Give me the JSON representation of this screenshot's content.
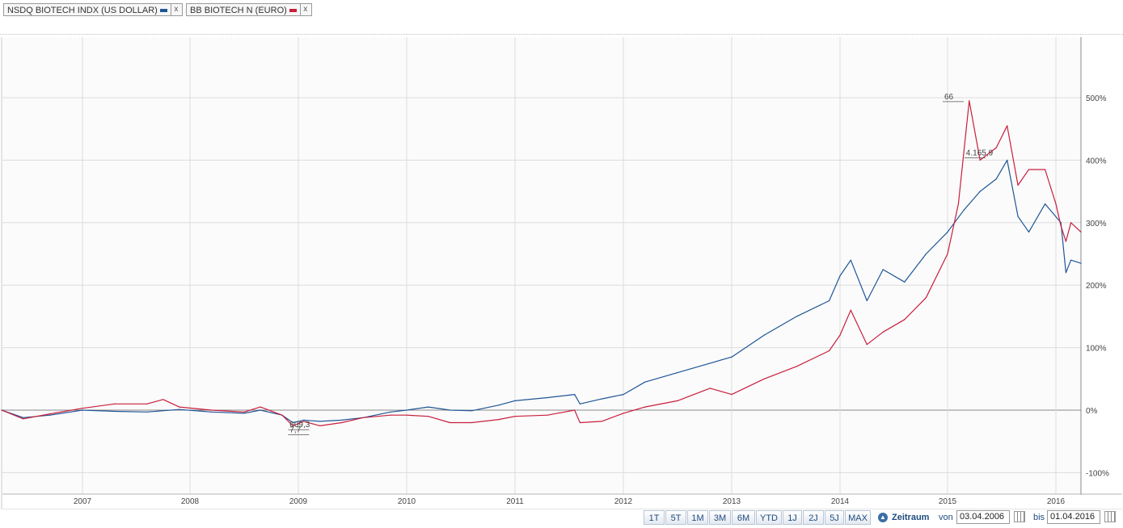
{
  "legend": [
    {
      "label": "NSDQ BIOTECH INDX (US DOLLAR)",
      "color": "#1f5596",
      "close": "x"
    },
    {
      "label": "BB BIOTECH N (EURO)",
      "color": "#c81e3c",
      "close": "x"
    }
  ],
  "chart_data": {
    "type": "line",
    "x_labels": [
      "2007",
      "2008",
      "2009",
      "2010",
      "2011",
      "2012",
      "2013",
      "2014",
      "2015",
      "2016"
    ],
    "y_labels": [
      "500%",
      "400%",
      "300%",
      "200%",
      "100%",
      "0%",
      "-100%"
    ],
    "ylim": [
      -135,
      560
    ],
    "xlim": [
      2006.25,
      2016.25
    ],
    "grid": true,
    "annotations": [
      {
        "text": "66",
        "x": 2015.0,
        "y": 495
      },
      {
        "text": "4.165,9",
        "x": 2015.2,
        "y": 405
      },
      {
        "text": "609,3",
        "x": 2008.95,
        "y": -30
      },
      {
        "text": "7,7",
        "x": 2008.95,
        "y": -38
      }
    ],
    "series": [
      {
        "name": "NSDQ BIOTECH INDX (US DOLLAR)",
        "color": "#1f5596",
        "points": [
          [
            2006.25,
            0
          ],
          [
            2006.45,
            -12
          ],
          [
            2006.7,
            -8
          ],
          [
            2007.0,
            0
          ],
          [
            2007.3,
            -2
          ],
          [
            2007.6,
            -3
          ],
          [
            2007.9,
            1
          ],
          [
            2008.2,
            -3
          ],
          [
            2008.5,
            -5
          ],
          [
            2008.65,
            0
          ],
          [
            2008.85,
            -8
          ],
          [
            2008.95,
            -20
          ],
          [
            2009.05,
            -16
          ],
          [
            2009.2,
            -18
          ],
          [
            2009.4,
            -16
          ],
          [
            2009.6,
            -12
          ],
          [
            2009.85,
            -3
          ],
          [
            2010.0,
            0
          ],
          [
            2010.2,
            5
          ],
          [
            2010.4,
            0
          ],
          [
            2010.6,
            -1
          ],
          [
            2010.85,
            8
          ],
          [
            2011.0,
            15
          ],
          [
            2011.3,
            20
          ],
          [
            2011.55,
            25
          ],
          [
            2011.6,
            10
          ],
          [
            2011.8,
            18
          ],
          [
            2012.0,
            25
          ],
          [
            2012.2,
            45
          ],
          [
            2012.5,
            60
          ],
          [
            2012.8,
            75
          ],
          [
            2013.0,
            85
          ],
          [
            2013.3,
            120
          ],
          [
            2013.6,
            150
          ],
          [
            2013.9,
            175
          ],
          [
            2014.0,
            215
          ],
          [
            2014.1,
            240
          ],
          [
            2014.25,
            175
          ],
          [
            2014.4,
            225
          ],
          [
            2014.6,
            205
          ],
          [
            2014.8,
            250
          ],
          [
            2015.0,
            285
          ],
          [
            2015.15,
            320
          ],
          [
            2015.3,
            350
          ],
          [
            2015.45,
            370
          ],
          [
            2015.55,
            400
          ],
          [
            2015.65,
            310
          ],
          [
            2015.75,
            285
          ],
          [
            2015.9,
            330
          ],
          [
            2016.05,
            300
          ],
          [
            2016.1,
            220
          ],
          [
            2016.15,
            240
          ],
          [
            2016.25,
            235
          ]
        ]
      },
      {
        "name": "BB BIOTECH N (EURO)",
        "color": "#c81e3c",
        "points": [
          [
            2006.25,
            0
          ],
          [
            2006.45,
            -14
          ],
          [
            2006.7,
            -6
          ],
          [
            2007.0,
            3
          ],
          [
            2007.3,
            10
          ],
          [
            2007.6,
            10
          ],
          [
            2007.75,
            17
          ],
          [
            2007.9,
            5
          ],
          [
            2008.2,
            0
          ],
          [
            2008.5,
            -3
          ],
          [
            2008.65,
            5
          ],
          [
            2008.85,
            -8
          ],
          [
            2008.95,
            -25
          ],
          [
            2009.05,
            -18
          ],
          [
            2009.2,
            -25
          ],
          [
            2009.4,
            -20
          ],
          [
            2009.6,
            -12
          ],
          [
            2009.85,
            -8
          ],
          [
            2010.0,
            -8
          ],
          [
            2010.2,
            -10
          ],
          [
            2010.4,
            -20
          ],
          [
            2010.6,
            -20
          ],
          [
            2010.85,
            -15
          ],
          [
            2011.0,
            -10
          ],
          [
            2011.3,
            -8
          ],
          [
            2011.55,
            0
          ],
          [
            2011.6,
            -20
          ],
          [
            2011.8,
            -18
          ],
          [
            2012.0,
            -5
          ],
          [
            2012.2,
            5
          ],
          [
            2012.5,
            15
          ],
          [
            2012.8,
            35
          ],
          [
            2013.0,
            25
          ],
          [
            2013.3,
            50
          ],
          [
            2013.6,
            70
          ],
          [
            2013.9,
            95
          ],
          [
            2014.0,
            120
          ],
          [
            2014.1,
            160
          ],
          [
            2014.25,
            105
          ],
          [
            2014.4,
            125
          ],
          [
            2014.6,
            145
          ],
          [
            2014.8,
            180
          ],
          [
            2015.0,
            250
          ],
          [
            2015.1,
            330
          ],
          [
            2015.2,
            495
          ],
          [
            2015.3,
            400
          ],
          [
            2015.45,
            420
          ],
          [
            2015.55,
            455
          ],
          [
            2015.65,
            360
          ],
          [
            2015.75,
            385
          ],
          [
            2015.9,
            385
          ],
          [
            2016.0,
            330
          ],
          [
            2016.05,
            295
          ],
          [
            2016.1,
            270
          ],
          [
            2016.15,
            300
          ],
          [
            2016.25,
            285
          ]
        ]
      }
    ]
  },
  "toolbar": {
    "ranges": [
      "1T",
      "5T",
      "1M",
      "3M",
      "6M",
      "YTD",
      "1J",
      "2J",
      "5J",
      "MAX"
    ],
    "zeitraum": "Zeitraum",
    "von_label": "von",
    "von_value": "03.04.2006",
    "bis_label": "bis",
    "bis_value": "01.04.2016"
  }
}
